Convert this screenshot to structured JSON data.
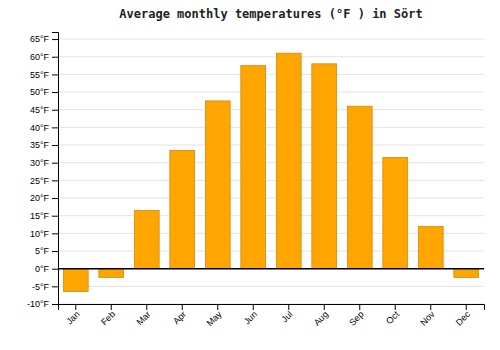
{
  "chart_data": {
    "type": "bar",
    "title": "Average monthly temperatures (°F ) in Sört",
    "categories": [
      "Jan",
      "Feb",
      "Mar",
      "Apr",
      "May",
      "Jun",
      "Jul",
      "Aug",
      "Sep",
      "Oct",
      "Nov",
      "Dec"
    ],
    "values": [
      -6.5,
      -2.5,
      16.5,
      33.5,
      47.5,
      57.5,
      61.0,
      58.0,
      46.0,
      31.5,
      12.0,
      -2.5
    ],
    "color": "#FFA500",
    "ylim": [
      -10,
      67
    ],
    "yticks": [
      {
        "value": -10,
        "label": "-10°F"
      },
      {
        "value": -5,
        "label": "-5°F"
      },
      {
        "value": 0,
        "label": "0°F"
      },
      {
        "value": 5,
        "label": "5°F"
      },
      {
        "value": 10,
        "label": "10°F"
      },
      {
        "value": 15,
        "label": "15°F"
      },
      {
        "value": 20,
        "label": "20°F"
      },
      {
        "value": 25,
        "label": "25°F"
      },
      {
        "value": 30,
        "label": "30°F"
      },
      {
        "value": 35,
        "label": "35°F"
      },
      {
        "value": 40,
        "label": "40°F"
      },
      {
        "value": 45,
        "label": "45°F"
      },
      {
        "value": 50,
        "label": "50°F"
      },
      {
        "value": 55,
        "label": "55°F"
      },
      {
        "value": 60,
        "label": "60°F"
      },
      {
        "value": 65,
        "label": "65°F"
      }
    ],
    "grid": true
  }
}
